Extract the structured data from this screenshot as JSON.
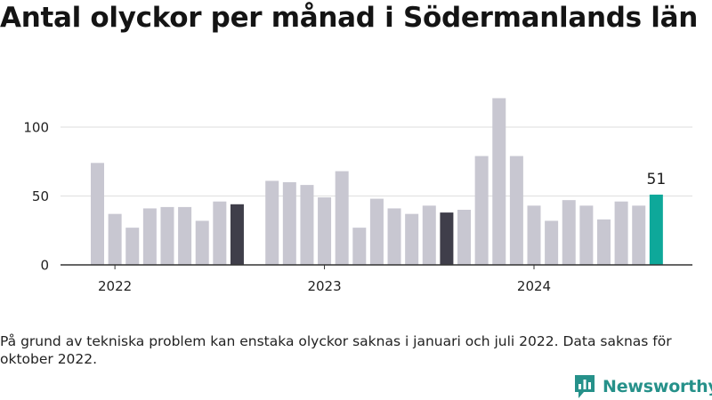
{
  "title": "Antal olyckor per månad i Södermanlands län",
  "note": "På grund av tekniska problem kan enstaka olyckor saknas i januari och juli 2022. Data saknas för oktober 2022.",
  "brand": {
    "name": "Newsworthy",
    "color": "#26918a"
  },
  "colors": {
    "default": "#c8c7d1",
    "highlight": "#3f3e4a",
    "latest": "#0ea89a",
    "grid": "#dedede",
    "axis": "#333333",
    "text": "#222222"
  },
  "chart_data": {
    "type": "bar",
    "x": [
      "2022-01",
      "2022-02",
      "2022-03",
      "2022-04",
      "2022-05",
      "2022-06",
      "2022-07",
      "2022-08",
      "2022-09",
      "2022-10",
      "2022-11",
      "2022-12",
      "2023-01",
      "2023-02",
      "2023-03",
      "2023-04",
      "2023-05",
      "2023-06",
      "2023-07",
      "2023-08",
      "2023-09",
      "2023-10",
      "2023-11",
      "2023-12",
      "2024-01",
      "2024-02",
      "2024-03",
      "2024-04",
      "2024-05",
      "2024-06",
      "2024-07",
      "2024-08",
      "2024-09"
    ],
    "values": [
      74,
      37,
      27,
      41,
      42,
      42,
      32,
      46,
      44,
      null,
      61,
      60,
      58,
      49,
      68,
      27,
      48,
      41,
      37,
      43,
      38,
      40,
      79,
      121,
      79,
      43,
      32,
      47,
      43,
      33,
      46,
      43,
      51
    ],
    "highlight": [
      "2022-09",
      "2023-09"
    ],
    "latest": "2024-09",
    "data_label": {
      "x": "2024-09",
      "text": "51"
    },
    "y_ticks": [
      0,
      50,
      100
    ],
    "x_ticks": [
      {
        "x": "2022-02",
        "label": "2022"
      },
      {
        "x": "2023-02",
        "label": "2023"
      },
      {
        "x": "2024-02",
        "label": "2024"
      }
    ],
    "ylim": [
      0,
      130
    ],
    "grid": true,
    "xlabel": "",
    "ylabel": ""
  }
}
